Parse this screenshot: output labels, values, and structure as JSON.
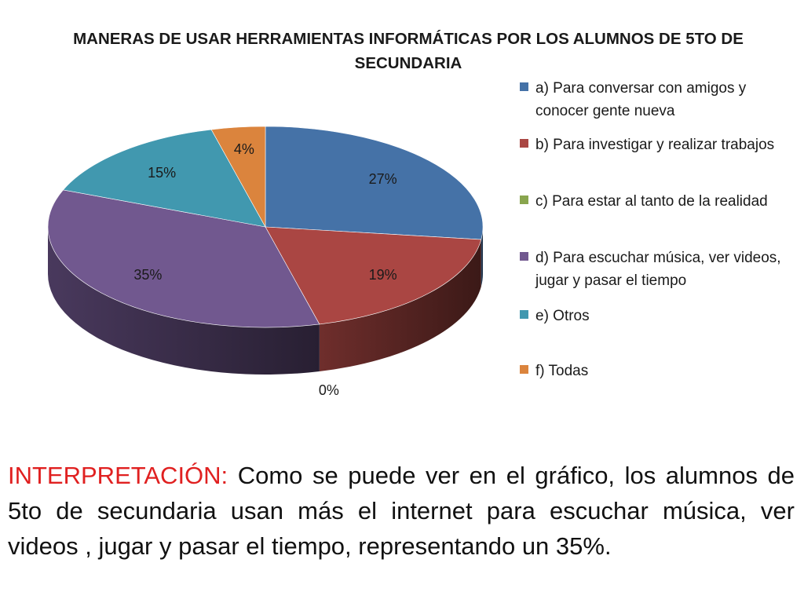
{
  "chart_data": {
    "type": "pie",
    "title": "MANERAS DE USAR HERRAMIENTAS INFORMÁTICAS POR LOS ALUMNOS DE 5TO DE SECUNDARIA",
    "legend_position": "right",
    "three_d": true,
    "slices": [
      {
        "label": "a) Para conversar con amigos y conocer gente nueva",
        "value": 27,
        "data_label": "27%",
        "color": "#4572a7"
      },
      {
        "label": "b) Para investigar y realizar trabajos",
        "value": 19,
        "data_label": "19%",
        "color": "#aa4643"
      },
      {
        "label": "c) Para estar al tanto de la realidad",
        "value": 0,
        "data_label": "0%",
        "color": "#89a54e"
      },
      {
        "label": "d) Para escuchar música, ver videos, jugar y pasar el tiempo",
        "value": 35,
        "data_label": "35%",
        "color": "#71588f"
      },
      {
        "label": "e) Otros",
        "value": 15,
        "data_label": "15%",
        "color": "#4198af"
      },
      {
        "label": "f) Todas",
        "value": 4,
        "data_label": "4%",
        "color": "#db843d"
      }
    ]
  },
  "interpretation": {
    "label": "INTERPRETACIÓN:",
    "text": "Como se puede ver en el gráfico,  los alumnos de 5to de secundaria usan más el internet para escuchar música, ver videos , jugar y pasar el tiempo, representando un 35%."
  }
}
